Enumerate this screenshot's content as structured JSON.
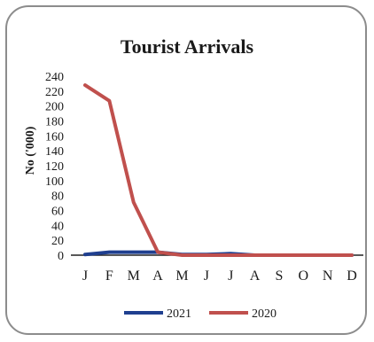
{
  "chart_data": {
    "type": "line",
    "title": "Tourist Arrivals",
    "xlabel": "",
    "ylabel": "No ('000)",
    "categories": [
      "J",
      "F",
      "M",
      "A",
      "M",
      "J",
      "J",
      "A",
      "S",
      "O",
      "N",
      "D"
    ],
    "ylim": [
      0,
      240
    ],
    "yticks": [
      0,
      20,
      40,
      60,
      80,
      100,
      120,
      140,
      160,
      180,
      200,
      220,
      240
    ],
    "grid": false,
    "legend_position": "bottom",
    "series": [
      {
        "name": "2021",
        "color": "#1f3f8f",
        "values": [
          1,
          4,
          4,
          4,
          1,
          1,
          2,
          0,
          0,
          0,
          0,
          0
        ]
      },
      {
        "name": "2020",
        "color": "#c0504d",
        "values": [
          228,
          207,
          71,
          4,
          0,
          0,
          0,
          0,
          0,
          0,
          0,
          0
        ]
      }
    ]
  }
}
